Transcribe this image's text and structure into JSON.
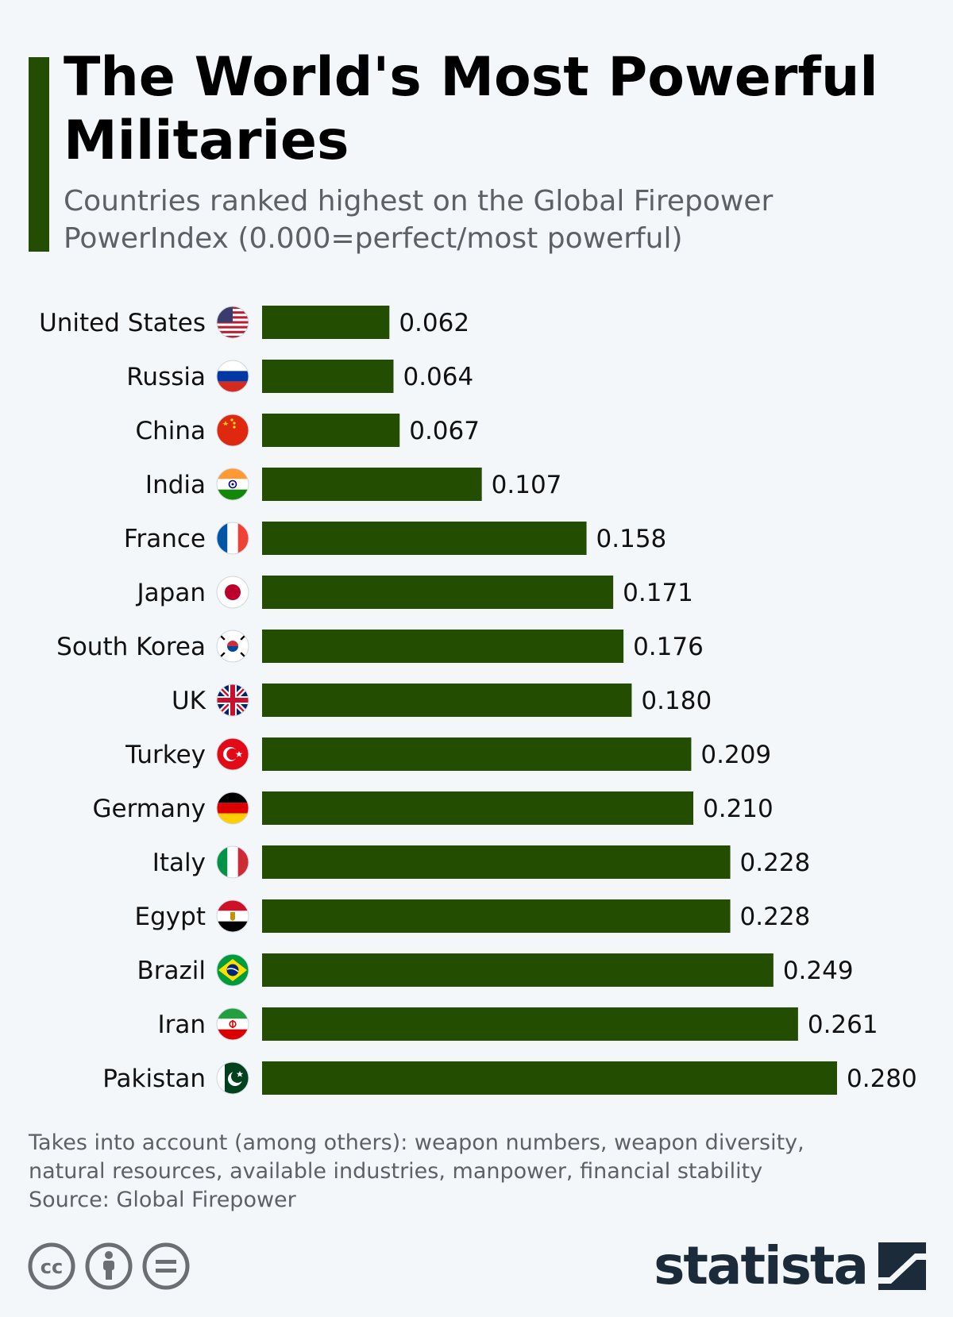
{
  "header": {
    "title": "The World's Most Powerful Militaries",
    "subtitle": "Countries ranked highest on the Global Firepower PowerIndex (0.000=perfect/most powerful)"
  },
  "colors": {
    "bar": "#234d00",
    "accent": "#234d00",
    "background": "#f3f7fa",
    "muted_text": "#5c6166",
    "brand_dark": "#1c2b39"
  },
  "chart_data": {
    "type": "bar",
    "orientation": "horizontal",
    "categories": [
      "United States",
      "Russia",
      "China",
      "India",
      "France",
      "Japan",
      "South Korea",
      "UK",
      "Turkey",
      "Germany",
      "Italy",
      "Egypt",
      "Brazil",
      "Iran",
      "Pakistan"
    ],
    "values": [
      0.062,
      0.064,
      0.067,
      0.107,
      0.158,
      0.171,
      0.176,
      0.18,
      0.209,
      0.21,
      0.228,
      0.228,
      0.249,
      0.261,
      0.28
    ],
    "value_labels": [
      "0.062",
      "0.064",
      "0.067",
      "0.107",
      "0.158",
      "0.171",
      "0.176",
      "0.180",
      "0.209",
      "0.210",
      "0.228",
      "0.228",
      "0.249",
      "0.261",
      "0.280"
    ],
    "flags": [
      "us-flag-icon",
      "russia-flag-icon",
      "china-flag-icon",
      "india-flag-icon",
      "france-flag-icon",
      "japan-flag-icon",
      "south-korea-flag-icon",
      "uk-flag-icon",
      "turkey-flag-icon",
      "germany-flag-icon",
      "italy-flag-icon",
      "egypt-flag-icon",
      "brazil-flag-icon",
      "iran-flag-icon",
      "pakistan-flag-icon"
    ],
    "xlim": [
      0,
      0.28
    ],
    "grid": false,
    "legend": false
  },
  "footnote": {
    "line1": "Takes into account (among others): weapon numbers, weapon diversity,",
    "line2": "natural resources, available industries, manpower, financial stability",
    "source": "Source: Global Firepower"
  },
  "footer": {
    "license_icons": [
      "cc-icon",
      "attribution-icon",
      "no-derivatives-icon"
    ],
    "brand": "statista"
  }
}
